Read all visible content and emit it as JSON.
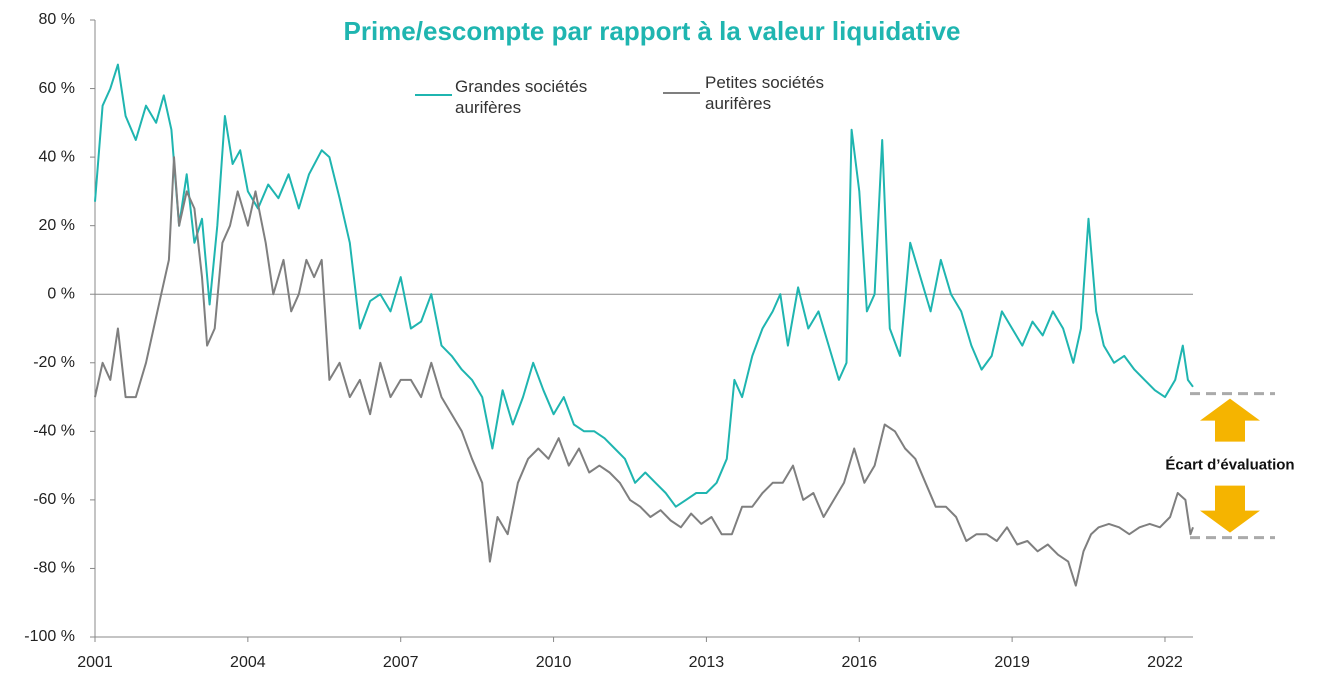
{
  "chart_data": {
    "type": "line",
    "title": "Prime/escompte par rapport à la valeur liquidative",
    "xlim": [
      2001,
      2022.55
    ],
    "xticks": [
      2001,
      2004,
      2007,
      2010,
      2013,
      2016,
      2019,
      2022
    ],
    "ylim": [
      -100,
      80
    ],
    "yticks": [
      {
        "value": -100,
        "label": "-100 %"
      },
      {
        "value": -80,
        "label": "-80 %"
      },
      {
        "value": -60,
        "label": "-60 %"
      },
      {
        "value": -40,
        "label": "-40 %"
      },
      {
        "value": -20,
        "label": "-20 %"
      },
      {
        "value": 0,
        "label": "0 %"
      },
      {
        "value": 20,
        "label": "20 %"
      },
      {
        "value": 40,
        "label": "40 %"
      },
      {
        "value": 60,
        "label": "60 %"
      },
      {
        "value": 80,
        "label": "80 %"
      }
    ],
    "annotation": {
      "text": "Écart d’évaluation",
      "from": -29,
      "to": -71,
      "color": "#f5b400"
    },
    "series": [
      {
        "name": "Grandes sociétés aurifères",
        "color": "#1fb5b0",
        "x": [
          2001.0,
          2001.15,
          2001.3,
          2001.45,
          2001.6,
          2001.8,
          2002.0,
          2002.2,
          2002.35,
          2002.5,
          2002.65,
          2002.8,
          2002.95,
          2003.1,
          2003.25,
          2003.4,
          2003.55,
          2003.7,
          2003.85,
          2004.0,
          2004.2,
          2004.4,
          2004.6,
          2004.8,
          2005.0,
          2005.2,
          2005.45,
          2005.6,
          2005.8,
          2006.0,
          2006.2,
          2006.4,
          2006.6,
          2006.8,
          2007.0,
          2007.2,
          2007.4,
          2007.6,
          2007.8,
          2008.0,
          2008.2,
          2008.4,
          2008.6,
          2008.8,
          2009.0,
          2009.2,
          2009.4,
          2009.6,
          2009.8,
          2010.0,
          2010.2,
          2010.4,
          2010.6,
          2010.8,
          2011.0,
          2011.2,
          2011.4,
          2011.6,
          2011.8,
          2012.0,
          2012.2,
          2012.4,
          2012.6,
          2012.8,
          2013.0,
          2013.2,
          2013.4,
          2013.55,
          2013.7,
          2013.9,
          2014.1,
          2014.3,
          2014.45,
          2014.6,
          2014.8,
          2015.0,
          2015.2,
          2015.4,
          2015.6,
          2015.75,
          2015.85,
          2016.0,
          2016.15,
          2016.3,
          2016.45,
          2016.6,
          2016.8,
          2017.0,
          2017.2,
          2017.4,
          2017.6,
          2017.8,
          2018.0,
          2018.2,
          2018.4,
          2018.6,
          2018.8,
          2019.0,
          2019.2,
          2019.4,
          2019.6,
          2019.8,
          2020.0,
          2020.2,
          2020.35,
          2020.5,
          2020.65,
          2020.8,
          2021.0,
          2021.2,
          2021.4,
          2021.6,
          2021.8,
          2022.0,
          2022.2,
          2022.35,
          2022.45,
          2022.55
        ],
        "values": [
          27,
          55,
          60,
          67,
          52,
          45,
          55,
          50,
          58,
          48,
          20,
          35,
          15,
          22,
          -3,
          20,
          52,
          38,
          42,
          30,
          25,
          32,
          28,
          35,
          25,
          35,
          42,
          40,
          28,
          15,
          -10,
          -2,
          0,
          -5,
          5,
          -10,
          -8,
          0,
          -15,
          -18,
          -22,
          -25,
          -30,
          -45,
          -28,
          -38,
          -30,
          -20,
          -28,
          -35,
          -30,
          -38,
          -40,
          -40,
          -42,
          -45,
          -48,
          -55,
          -52,
          -55,
          -58,
          -62,
          -60,
          -58,
          -58,
          -55,
          -48,
          -25,
          -30,
          -18,
          -10,
          -5,
          0,
          -15,
          2,
          -10,
          -5,
          -15,
          -25,
          -20,
          48,
          30,
          -5,
          0,
          45,
          -10,
          -18,
          15,
          5,
          -5,
          10,
          0,
          -5,
          -15,
          -22,
          -18,
          -5,
          -10,
          -15,
          -8,
          -12,
          -5,
          -10,
          -20,
          -10,
          22,
          -5,
          -15,
          -20,
          -18,
          -22,
          -25,
          -28,
          -30,
          -25,
          -15,
          -25,
          -27
        ]
      },
      {
        "name": "Petites sociétés aurifères",
        "color": "#7f7f7f",
        "x": [
          2001.0,
          2001.15,
          2001.3,
          2001.45,
          2001.6,
          2001.8,
          2002.0,
          2002.15,
          2002.3,
          2002.45,
          2002.55,
          2002.65,
          2002.8,
          2002.95,
          2003.1,
          2003.2,
          2003.35,
          2003.5,
          2003.65,
          2003.8,
          2004.0,
          2004.15,
          2004.35,
          2004.5,
          2004.7,
          2004.85,
          2005.0,
          2005.15,
          2005.3,
          2005.45,
          2005.6,
          2005.8,
          2006.0,
          2006.2,
          2006.4,
          2006.6,
          2006.8,
          2007.0,
          2007.2,
          2007.4,
          2007.6,
          2007.8,
          2008.0,
          2008.2,
          2008.4,
          2008.6,
          2008.75,
          2008.9,
          2009.1,
          2009.3,
          2009.5,
          2009.7,
          2009.9,
          2010.1,
          2010.3,
          2010.5,
          2010.7,
          2010.9,
          2011.1,
          2011.3,
          2011.5,
          2011.7,
          2011.9,
          2012.1,
          2012.3,
          2012.5,
          2012.7,
          2012.9,
          2013.1,
          2013.3,
          2013.5,
          2013.7,
          2013.9,
          2014.1,
          2014.3,
          2014.5,
          2014.7,
          2014.9,
          2015.1,
          2015.3,
          2015.5,
          2015.7,
          2015.9,
          2016.1,
          2016.3,
          2016.5,
          2016.7,
          2016.9,
          2017.1,
          2017.3,
          2017.5,
          2017.7,
          2017.9,
          2018.1,
          2018.3,
          2018.5,
          2018.7,
          2018.9,
          2019.1,
          2019.3,
          2019.5,
          2019.7,
          2019.9,
          2020.1,
          2020.25,
          2020.4,
          2020.55,
          2020.7,
          2020.9,
          2021.1,
          2021.3,
          2021.5,
          2021.7,
          2021.9,
          2022.1,
          2022.25,
          2022.4,
          2022.5,
          2022.55
        ],
        "values": [
          -30,
          -20,
          -25,
          -10,
          -30,
          -30,
          -20,
          -10,
          0,
          10,
          40,
          20,
          30,
          25,
          5,
          -15,
          -10,
          15,
          20,
          30,
          20,
          30,
          15,
          0,
          10,
          -5,
          0,
          10,
          5,
          10,
          -25,
          -20,
          -30,
          -25,
          -35,
          -20,
          -30,
          -25,
          -25,
          -30,
          -20,
          -30,
          -35,
          -40,
          -48,
          -55,
          -78,
          -65,
          -70,
          -55,
          -48,
          -45,
          -48,
          -42,
          -50,
          -45,
          -52,
          -50,
          -52,
          -55,
          -60,
          -62,
          -65,
          -63,
          -66,
          -68,
          -64,
          -67,
          -65,
          -70,
          -70,
          -62,
          -62,
          -58,
          -55,
          -55,
          -50,
          -60,
          -58,
          -65,
          -60,
          -55,
          -45,
          -55,
          -50,
          -38,
          -40,
          -45,
          -48,
          -55,
          -62,
          -62,
          -65,
          -72,
          -70,
          -70,
          -72,
          -68,
          -73,
          -72,
          -75,
          -73,
          -76,
          -78,
          -85,
          -75,
          -70,
          -68,
          -67,
          -68,
          -70,
          -68,
          -67,
          -68,
          -65,
          -58,
          -60,
          -70,
          -68
        ]
      }
    ]
  }
}
